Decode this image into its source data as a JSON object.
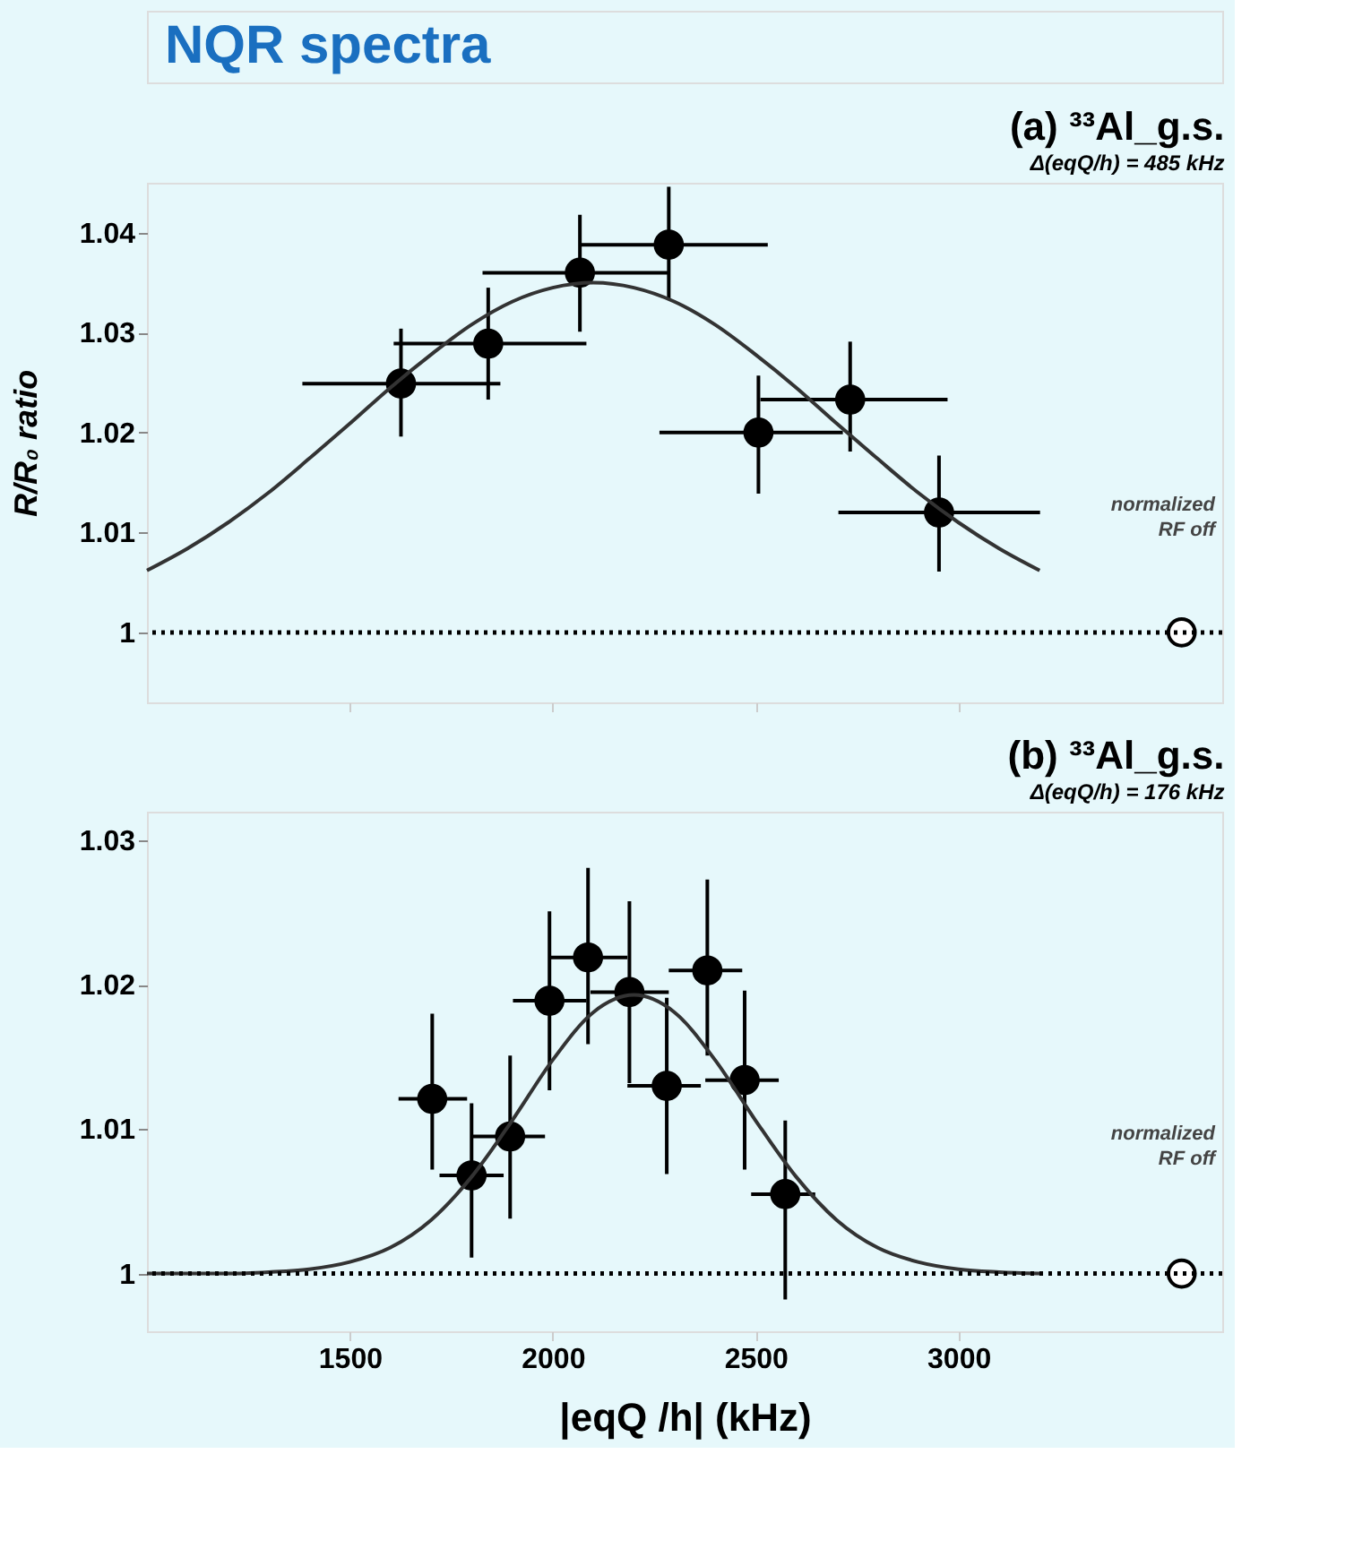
{
  "chart_data": [
    {
      "type": "other",
      "title": "NQR spectra"
    },
    {
      "type": "scatter",
      "title": "(a) ³³Al_g.s.",
      "subtitle": "Δ(eqQ/h) = 485 kHz",
      "ylabel": "R/R₀ ratio",
      "xlim": [
        1000,
        3650
      ],
      "ylim": [
        0.993,
        1.045
      ],
      "xticks": [
        1500,
        2000,
        2500,
        3000
      ],
      "yticks": [
        1,
        1.01,
        1.02,
        1.03,
        1.04
      ],
      "tick_labels": "y",
      "marker": "circle",
      "annotations": [
        "normalized",
        "RF off"
      ],
      "series": [
        {
          "type": "scatter",
          "color": "#000000",
          "x": [
            1626,
            1841,
            2067,
            2286,
            2507,
            2733,
            2952
          ],
          "values": [
            1.0249,
            1.0289,
            1.036,
            1.0388,
            1.02,
            1.0233,
            1.012
          ],
          "errors": [
            [
              1.0196,
              1.0304
            ],
            [
              1.0233,
              1.0345
            ],
            [
              1.0301,
              1.0418
            ],
            [
              1.0333,
              1.0446
            ],
            [
              1.0139,
              1.0257
            ],
            [
              1.0181,
              1.0291
            ],
            [
              1.0061,
              1.0177
            ]
          ],
          "xerrors": [
            [
              1383,
              1871
            ],
            [
              1608,
              2083
            ],
            [
              1827,
              2286
            ],
            [
              2071,
              2530
            ],
            [
              2263,
              2715
            ],
            [
              2512,
              2973
            ],
            [
              2704,
              3201
            ]
          ]
        },
        {
          "type": "line",
          "color": "#333333",
          "marker": "none",
          "line_style": "solid",
          "x": [
            1000,
            1100,
            1200,
            1300,
            1400,
            1500,
            1600,
            1700,
            1800,
            1900,
            2000,
            2100,
            2200,
            2300,
            2400,
            2500,
            2600,
            2700,
            2800,
            2900,
            3000,
            3100,
            3200
          ],
          "values": [
            1.0062,
            1.0084,
            1.011,
            1.014,
            1.0174,
            1.0209,
            1.0245,
            1.0278,
            1.0308,
            1.0331,
            1.0345,
            1.035,
            1.0345,
            1.0331,
            1.0308,
            1.0278,
            1.0245,
            1.0209,
            1.0174,
            1.014,
            1.011,
            1.0084,
            1.0062
          ]
        },
        {
          "type": "scatter",
          "color": "#ffffff",
          "x": [
            3550
          ],
          "values": [
            1
          ]
        }
      ],
      "ref_lines": [
        {
          "axis": "y",
          "value": 1,
          "line_style": "dotted",
          "color": "#000000"
        }
      ]
    },
    {
      "type": "scatter",
      "title": "(b) ³³Al_g.s.",
      "subtitle": "Δ(eqQ/h) = 176 kHz",
      "xlabel": "|eqQ /h|  (kHz)",
      "xlim": [
        1000,
        3650
      ],
      "ylim": [
        0.996,
        1.032
      ],
      "xticks": [
        1500,
        2000,
        2500,
        3000
      ],
      "yticks": [
        1,
        1.01,
        1.02,
        1.03
      ],
      "marker": "circle",
      "annotations": [
        "normalized",
        "RF off"
      ],
      "series": [
        {
          "type": "scatter",
          "color": "#000000",
          "x": [
            1703,
            1800,
            1895,
            1992,
            2087,
            2189,
            2281,
            2381,
            2473,
            2573
          ],
          "values": [
            1.0121,
            1.0068,
            1.0095,
            1.0189,
            1.0219,
            1.0195,
            1.013,
            1.021,
            1.0134,
            1.0055
          ],
          "errors": [
            [
              1.0072,
              1.018
            ],
            [
              1.0011,
              1.0118
            ],
            [
              1.0038,
              1.0151
            ],
            [
              1.0127,
              1.0251
            ],
            [
              1.0159,
              1.0281
            ],
            [
              1.0132,
              1.0258
            ],
            [
              1.0069,
              1.0191
            ],
            [
              1.0151,
              1.0273
            ],
            [
              1.0072,
              1.0196
            ],
            [
              0.9982,
              1.0106
            ]
          ],
          "xerrors": [
            [
              1620,
              1789
            ],
            [
              1721,
              1879
            ],
            [
              1800,
              1981
            ],
            [
              1902,
              2083
            ],
            [
              1992,
              2184
            ],
            [
              2093,
              2286
            ],
            [
              2184,
              2365
            ],
            [
              2286,
              2467
            ],
            [
              2376,
              2557
            ],
            [
              2489,
              2647
            ]
          ]
        },
        {
          "type": "line",
          "color": "#333333",
          "marker": "none",
          "line_style": "solid",
          "x": [
            1000,
            1100,
            1200,
            1300,
            1400,
            1500,
            1600,
            1700,
            1800,
            1900,
            2000,
            2100,
            2200,
            2300,
            2400,
            2500,
            2600,
            2700,
            2800,
            2900,
            3000,
            3100,
            3200
          ],
          "values": [
            1,
            1,
            1,
            1.0001,
            1.0003,
            1.0008,
            1.0018,
            1.0037,
            1.0067,
            1.0106,
            1.0148,
            1.0181,
            1.0193,
            1.0181,
            1.0148,
            1.0106,
            1.0067,
            1.0037,
            1.0018,
            1.0008,
            1.0003,
            1.0001,
            1
          ]
        },
        {
          "type": "scatter",
          "color": "#ffffff",
          "x": [
            3550
          ],
          "values": [
            1
          ]
        }
      ],
      "ref_lines": [
        {
          "axis": "y",
          "value": 1,
          "line_style": "dotted",
          "color": "#000000"
        }
      ]
    }
  ]
}
